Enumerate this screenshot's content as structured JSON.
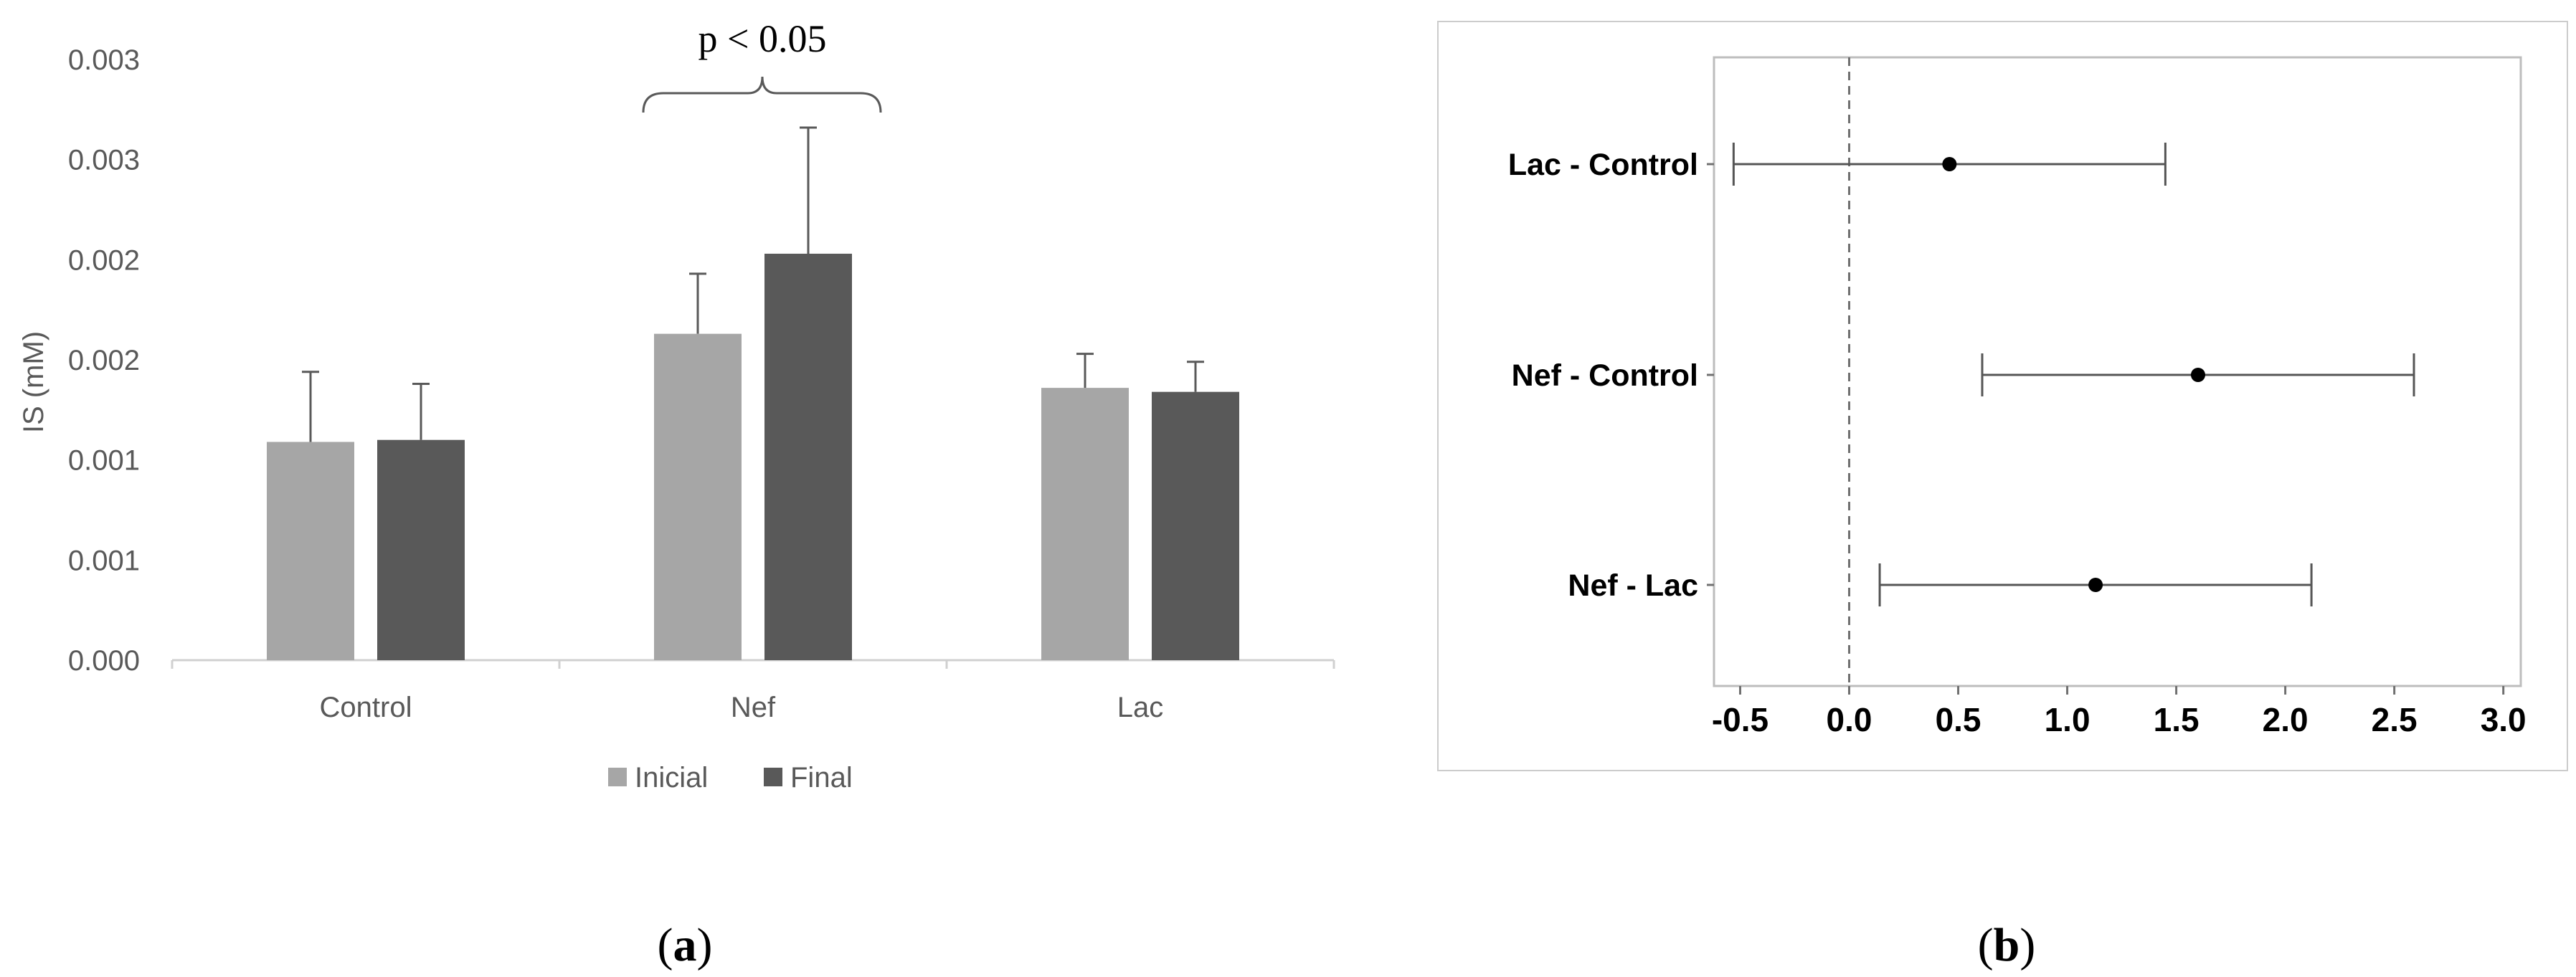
{
  "chart_data": [
    {
      "type": "bar",
      "panel_label_open": "(",
      "panel_label": "a",
      "panel_label_close": ")",
      "ylabel": "IS (mM)",
      "yticks": [
        "0.000",
        "0.001",
        "0.001",
        "0.002",
        "0.002",
        "0.003",
        "0.003"
      ],
      "ylim": [
        0,
        0.003
      ],
      "categories": [
        "Control",
        "Nef",
        "Lac"
      ],
      "series": [
        {
          "name": "Inicial",
          "color": "#a6a6a6",
          "values": [
            0.00109,
            0.00163,
            0.00136
          ],
          "error": [
            0.00035,
            0.0003,
            0.00017
          ]
        },
        {
          "name": "Final",
          "color": "#595959",
          "values": [
            0.0011,
            0.00203,
            0.00134
          ],
          "error": [
            0.00028,
            0.00063,
            0.00015
          ]
        }
      ],
      "annotation": {
        "text": "p < 0.05",
        "category": "Nef"
      },
      "legend_position": "bottom",
      "grid": false
    },
    {
      "type": "interval",
      "panel_label_open": "(",
      "panel_label": "b",
      "panel_label_close": ")",
      "categories": [
        "Lac - Control",
        "Nef - Control",
        "Nef - Lac"
      ],
      "estimates": [
        0.46,
        1.6,
        1.13
      ],
      "lower": [
        -0.53,
        0.61,
        0.14
      ],
      "upper": [
        1.45,
        2.59,
        2.12
      ],
      "xticks": [
        "-0.5",
        "0.0",
        "0.5",
        "1.0",
        "1.5",
        "2.0",
        "2.5",
        "3.0"
      ],
      "xlim": [
        -0.62,
        3.08
      ],
      "reference_line": 0,
      "grid": false
    }
  ]
}
